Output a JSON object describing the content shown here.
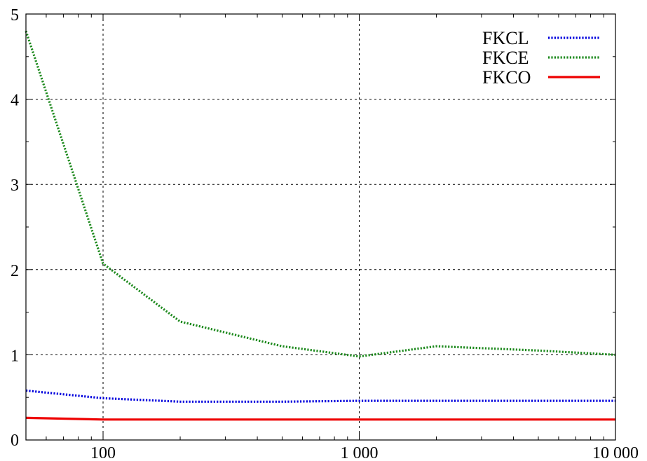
{
  "chart_data": {
    "type": "line",
    "title": "",
    "xlabel": "",
    "ylabel": "",
    "xscale": "log",
    "xlim": [
      50,
      10000
    ],
    "ylim": [
      0,
      5
    ],
    "grid": true,
    "legend_position": "top-right",
    "x_ticks": [
      100,
      1000,
      10000
    ],
    "x_tick_labels": [
      "100",
      "1 000",
      "10 000"
    ],
    "y_ticks": [
      0,
      1,
      2,
      3,
      4,
      5
    ],
    "y_tick_labels": [
      "0",
      "1",
      "2",
      "3",
      "4",
      "5"
    ],
    "series": [
      {
        "name": "FKCL",
        "color": "#0000dd",
        "style": "dotted",
        "x": [
          50,
          100,
          200,
          500,
          1000,
          2000,
          5000,
          10000
        ],
        "y": [
          0.58,
          0.49,
          0.45,
          0.45,
          0.46,
          0.46,
          0.46,
          0.46
        ]
      },
      {
        "name": "FKCE",
        "color": "#1e8a1e",
        "style": "dotted",
        "x": [
          50,
          100,
          200,
          500,
          1000,
          2000,
          5000,
          10000
        ],
        "y": [
          4.8,
          2.07,
          1.39,
          1.1,
          0.98,
          1.1,
          1.05,
          1.0
        ]
      },
      {
        "name": "FKCO",
        "color": "#ee0000",
        "style": "solid",
        "x": [
          50,
          100,
          200,
          500,
          1000,
          2000,
          5000,
          10000
        ],
        "y": [
          0.26,
          0.24,
          0.24,
          0.24,
          0.24,
          0.24,
          0.24,
          0.24
        ]
      }
    ]
  }
}
